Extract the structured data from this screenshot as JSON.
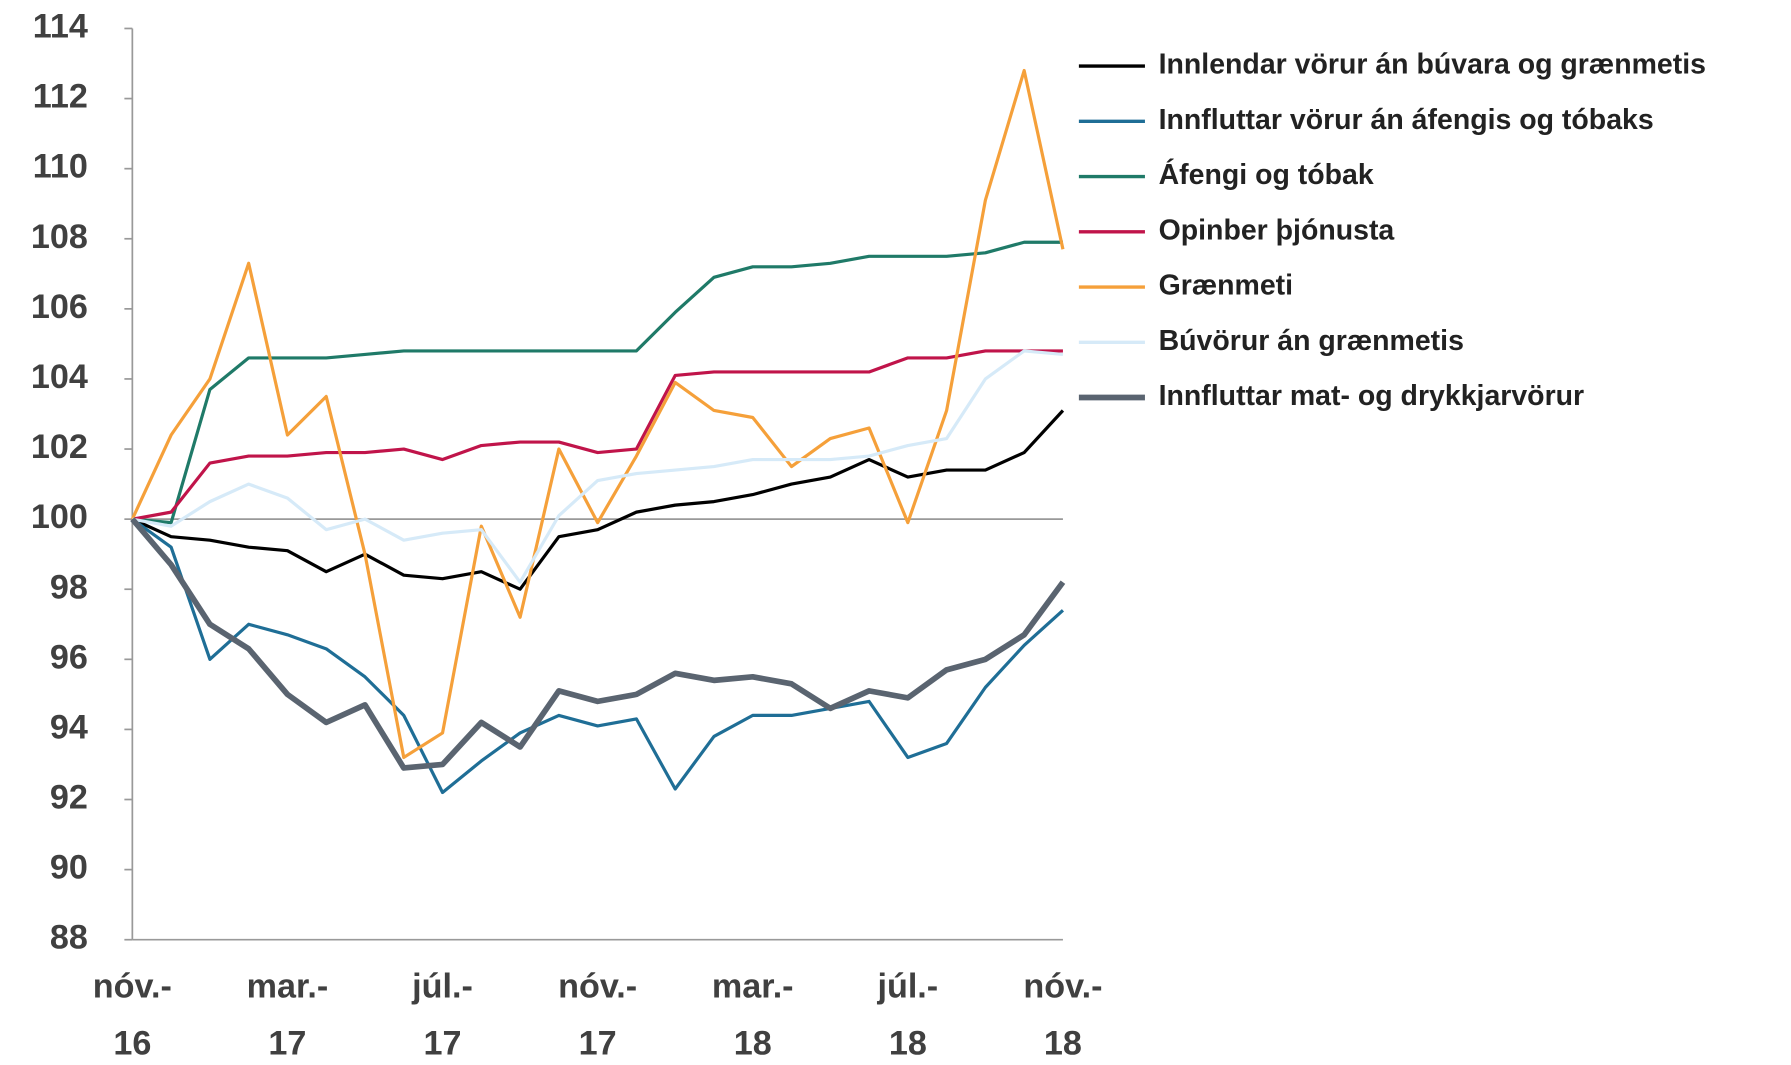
{
  "chart_data": {
    "type": "line",
    "categories": [
      "nóv.-16",
      null,
      null,
      null,
      "mar.-17",
      null,
      null,
      null,
      "júl.-17",
      null,
      null,
      null,
      "nóv.-17",
      null,
      null,
      null,
      "mar.-18",
      null,
      null,
      null,
      "júl.-18",
      null,
      null,
      null,
      "nóv.-18"
    ],
    "ylim": [
      88,
      114
    ],
    "yticks": [
      88,
      90,
      92,
      94,
      96,
      98,
      100,
      102,
      104,
      106,
      108,
      110,
      112,
      114
    ],
    "hline": 100,
    "series": [
      {
        "name": "Innlendar vörur án búvara og grænmetis",
        "color": "#000000",
        "values": [
          100,
          99.5,
          99.4,
          99.2,
          99.1,
          98.5,
          99.0,
          98.4,
          98.3,
          98.5,
          98.0,
          99.5,
          99.7,
          100.2,
          100.4,
          100.5,
          100.7,
          101.0,
          101.2,
          101.7,
          101.2,
          101.4,
          101.4,
          101.9,
          103.1
        ]
      },
      {
        "name": "Innfluttar vörur án áfengis og tóbaks",
        "color": "#1f6e96",
        "values": [
          100,
          99.2,
          96.0,
          97.0,
          96.7,
          96.3,
          95.5,
          94.4,
          92.2,
          93.1,
          93.9,
          94.4,
          94.1,
          94.3,
          92.3,
          93.8,
          94.4,
          94.4,
          94.6,
          94.8,
          93.2,
          93.6,
          95.2,
          96.4,
          97.4
        ]
      },
      {
        "name": "Áfengi og tóbak",
        "color": "#1f7a68",
        "values": [
          100,
          99.9,
          103.7,
          104.6,
          104.6,
          104.6,
          104.7,
          104.8,
          104.8,
          104.8,
          104.8,
          104.8,
          104.8,
          104.8,
          105.9,
          106.9,
          107.2,
          107.2,
          107.3,
          107.5,
          107.5,
          107.5,
          107.6,
          107.9,
          107.9
        ]
      },
      {
        "name": "Opinber þjónusta",
        "color": "#c0144a",
        "values": [
          100,
          100.2,
          101.6,
          101.8,
          101.8,
          101.9,
          101.9,
          102.0,
          101.7,
          102.1,
          102.2,
          102.2,
          101.9,
          102.0,
          104.1,
          104.2,
          104.2,
          104.2,
          104.2,
          104.2,
          104.6,
          104.6,
          104.8,
          104.8,
          104.8
        ]
      },
      {
        "name": "Grænmeti",
        "color": "#f5a03a",
        "values": [
          100,
          102.4,
          104.0,
          107.3,
          102.4,
          103.5,
          99.0,
          93.2,
          93.9,
          99.8,
          97.2,
          102.0,
          99.9,
          101.8,
          103.9,
          103.1,
          102.9,
          101.5,
          102.3,
          102.6,
          99.9,
          103.1,
          109.1,
          112.8,
          107.7
        ]
      },
      {
        "name": "Búvörur án grænmetis",
        "color": "#d6eaf8",
        "values": [
          100,
          99.8,
          100.5,
          101.0,
          100.6,
          99.7,
          100.0,
          99.4,
          99.6,
          99.7,
          98.2,
          100.1,
          101.1,
          101.3,
          101.4,
          101.5,
          101.7,
          101.7,
          101.7,
          101.8,
          102.1,
          102.3,
          104.0,
          104.8,
          104.7
        ]
      },
      {
        "name": "Innfluttar mat- og drykkjarvörur",
        "color": "#5a6470",
        "values": [
          100,
          98.7,
          97.0,
          96.3,
          95.0,
          94.2,
          94.7,
          92.9,
          93.0,
          94.2,
          93.5,
          95.1,
          94.8,
          95.0,
          95.6,
          95.4,
          95.5,
          95.3,
          94.6,
          95.1,
          94.9,
          95.7,
          96.0,
          96.7,
          98.2
        ]
      }
    ]
  }
}
